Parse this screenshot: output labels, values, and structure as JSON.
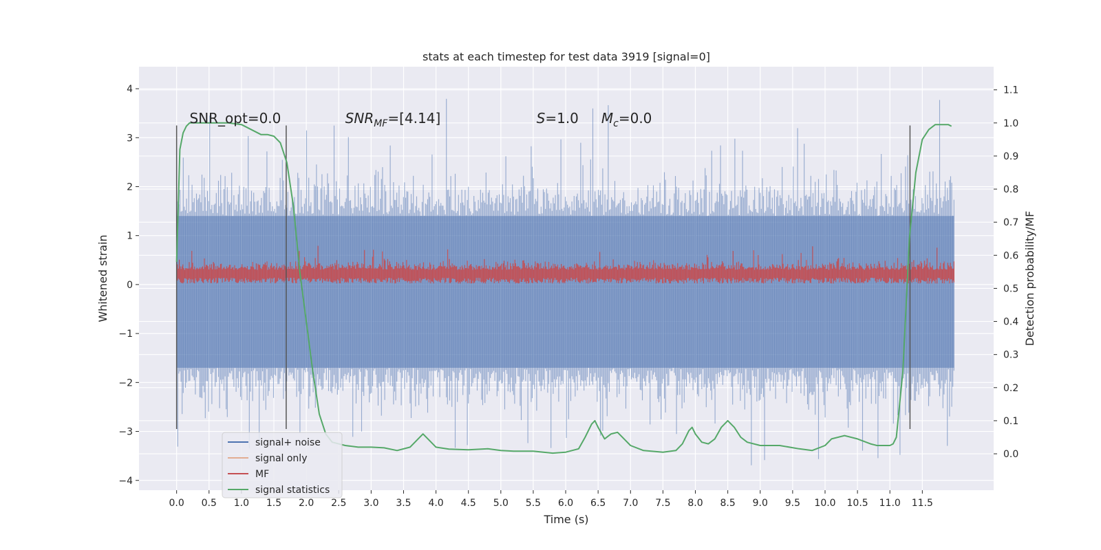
{
  "chart_data": {
    "type": "line",
    "title": "stats at each timestep for test data 3919 [signal=0]",
    "xlabel": "Time (s)",
    "ylabel": "Whitened strain",
    "y2label": "Detection probability/MF",
    "xlim": [
      -0.58,
      12.6
    ],
    "ylim": [
      -4.2,
      4.45
    ],
    "y2lim": [
      -0.11,
      1.17
    ],
    "x_ticks": [
      0.0,
      0.5,
      1.0,
      1.5,
      2.0,
      2.5,
      3.0,
      3.5,
      4.0,
      4.5,
      5.0,
      5.5,
      6.0,
      6.5,
      7.0,
      7.5,
      8.0,
      8.5,
      9.0,
      9.5,
      10.0,
      10.5,
      11.0,
      11.5
    ],
    "x_tick_labels": [
      "0.0",
      "0.5",
      "1.0",
      "1.5",
      "2.0",
      "2.5",
      "3.0",
      "3.5",
      "4.0",
      "4.5",
      "5.0",
      "5.5",
      "6.0",
      "6.5",
      "7.0",
      "7.5",
      "8.0",
      "8.5",
      "9.0",
      "9.5",
      "10.0",
      "10.5",
      "11.0",
      "11.5"
    ],
    "y_ticks": [
      -4,
      -3,
      -2,
      -1,
      0,
      1,
      2,
      3,
      4
    ],
    "y_tick_labels": [
      "−4",
      "−3",
      "−2",
      "−1",
      "0",
      "1",
      "2",
      "3",
      "4"
    ],
    "y2_ticks": [
      0.0,
      0.1,
      0.2,
      0.3,
      0.4,
      0.5,
      0.6,
      0.7,
      0.8,
      0.9,
      1.0,
      1.1
    ],
    "y2_tick_labels": [
      "0.0",
      "0.1",
      "0.2",
      "0.3",
      "0.4",
      "0.5",
      "0.6",
      "0.7",
      "0.8",
      "0.9",
      "1.0",
      "1.1"
    ],
    "grid": true,
    "legend_position": "lower-left",
    "annotations": [
      {
        "text": "SNR_opt=0.0",
        "x": 0.2,
        "y": 3.3
      },
      {
        "text": "SNR",
        "sub": "MF",
        "suffix": "=[4.14]",
        "italic": true,
        "x": 2.6,
        "y": 3.3
      },
      {
        "text": "S",
        "suffix": "=1.0",
        "italic": true,
        "x": 5.55,
        "y": 3.3
      },
      {
        "text": "M",
        "sub": "c",
        "suffix": "=0.0",
        "italic": true,
        "x": 6.55,
        "y": 3.3
      }
    ],
    "vlines": [
      {
        "x": 0.0,
        "ymin": -2.95,
        "ymax": 3.25
      },
      {
        "x": 1.69,
        "ymin": -2.95,
        "ymax": 3.25
      },
      {
        "x": 11.31,
        "ymin": -2.95,
        "ymax": 3.25
      }
    ],
    "series": [
      {
        "name": "signal+ noise",
        "color": "#4c72b0",
        "axis": "left",
        "x_range": [
          0.0,
          11.99
        ],
        "typical_band": [
          -1.7,
          1.4
        ],
        "extremes": [
          -3.75,
          4.1
        ]
      },
      {
        "name": "signal only",
        "color": "#dd8452",
        "axis": "left",
        "x_range": [
          0.0,
          11.99
        ],
        "values": []
      },
      {
        "name": "MF",
        "color": "#c44e52",
        "axis": "left",
        "x_range": [
          0.0,
          11.99
        ],
        "typical_band": [
          0.0,
          0.65
        ],
        "extremes": [
          0.0,
          1.0
        ]
      },
      {
        "name": "signal statistics",
        "color": "#55a868",
        "axis": "right",
        "x": [
          0.0,
          0.05,
          0.1,
          0.15,
          0.2,
          0.3,
          0.5,
          0.8,
          1.0,
          1.2,
          1.3,
          1.4,
          1.5,
          1.6,
          1.7,
          1.8,
          1.85,
          1.9,
          2.0,
          2.1,
          2.2,
          2.3,
          2.4,
          2.6,
          2.8,
          3.0,
          3.2,
          3.4,
          3.6,
          3.7,
          3.8,
          3.9,
          4.0,
          4.2,
          4.5,
          4.8,
          5.0,
          5.2,
          5.5,
          5.8,
          6.0,
          6.2,
          6.3,
          6.4,
          6.45,
          6.5,
          6.6,
          6.7,
          6.8,
          6.9,
          7.0,
          7.2,
          7.5,
          7.7,
          7.8,
          7.9,
          7.95,
          8.0,
          8.1,
          8.2,
          8.3,
          8.4,
          8.5,
          8.6,
          8.7,
          8.8,
          9.0,
          9.3,
          9.6,
          9.8,
          10.0,
          10.1,
          10.3,
          10.5,
          10.7,
          10.8,
          10.9,
          11.0,
          11.05,
          11.1,
          11.2,
          11.3,
          11.4,
          11.5,
          11.6,
          11.7,
          11.8,
          11.9,
          11.95
        ],
        "values": [
          0.58,
          0.92,
          0.97,
          0.99,
          1.0,
          1.0,
          1.0,
          1.0,
          0.995,
          0.975,
          0.965,
          0.965,
          0.96,
          0.94,
          0.88,
          0.75,
          0.65,
          0.55,
          0.4,
          0.25,
          0.12,
          0.06,
          0.035,
          0.025,
          0.02,
          0.02,
          0.018,
          0.01,
          0.02,
          0.04,
          0.06,
          0.04,
          0.02,
          0.014,
          0.012,
          0.015,
          0.01,
          0.008,
          0.008,
          0.002,
          0.005,
          0.015,
          0.05,
          0.09,
          0.1,
          0.08,
          0.045,
          0.06,
          0.065,
          0.045,
          0.025,
          0.01,
          0.005,
          0.01,
          0.03,
          0.07,
          0.08,
          0.06,
          0.035,
          0.03,
          0.045,
          0.08,
          0.1,
          0.08,
          0.05,
          0.035,
          0.025,
          0.025,
          0.015,
          0.01,
          0.025,
          0.045,
          0.055,
          0.045,
          0.03,
          0.025,
          0.025,
          0.025,
          0.03,
          0.05,
          0.25,
          0.65,
          0.85,
          0.95,
          0.98,
          0.995,
          0.995,
          0.995,
          0.99
        ]
      }
    ]
  }
}
